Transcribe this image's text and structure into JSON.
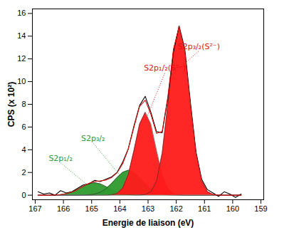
{
  "chart_data": {
    "type": "line",
    "x_label": "Energie de liaison (eV)",
    "y_label": "CPS (x 10²)",
    "xlim": [
      167.1,
      158.9
    ],
    "xticks": [
      167,
      166,
      165,
      164,
      163,
      162,
      161,
      160,
      159
    ],
    "ylim": [
      -0.4,
      16.4
    ],
    "yticks": [
      0,
      2,
      4,
      6,
      8,
      10,
      12,
      14,
      16
    ],
    "grid": false,
    "x": [
      166.9,
      166.7,
      166.5,
      166.3,
      166.1,
      165.9,
      165.7,
      165.5,
      165.3,
      165.1,
      164.9,
      164.7,
      164.5,
      164.3,
      164.1,
      163.9,
      163.7,
      163.5,
      163.3,
      163.1,
      162.9,
      162.7,
      162.5,
      162.3,
      162.1,
      161.9,
      161.7,
      161.5,
      161.3,
      161.1,
      160.9,
      160.7,
      160.5,
      160.3,
      160.1,
      159.9,
      159.7
    ],
    "series": [
      {
        "type": "area",
        "color": "#2e9a2e",
        "values": [
          0,
          0,
          0,
          0.02,
          0.05,
          0.13,
          0.27,
          0.5,
          0.78,
          1.01,
          1.1,
          1.01,
          0.78,
          0.5,
          0.27,
          0.13,
          0.05,
          0.02,
          0,
          0,
          0,
          0,
          0,
          0,
          0,
          0,
          0,
          0,
          0,
          0,
          0,
          0,
          0,
          0,
          0,
          0,
          0
        ]
      },
      {
        "type": "area",
        "color": "#2e9a2e",
        "values": [
          0,
          0,
          0,
          0,
          0,
          0,
          0,
          0,
          0.01,
          0.03,
          0.1,
          0.25,
          0.55,
          1.01,
          1.55,
          2.02,
          2.2,
          2.02,
          1.55,
          1.01,
          0.55,
          0.25,
          0.1,
          0.03,
          0.01,
          0,
          0,
          0,
          0,
          0,
          0,
          0,
          0,
          0,
          0,
          0,
          0
        ]
      },
      {
        "type": "area",
        "color": "#ff1a1a",
        "values": [
          0,
          0,
          0,
          0,
          0,
          0,
          0,
          0,
          0,
          0,
          0,
          0,
          0,
          0.03,
          0.15,
          0.62,
          1.82,
          3.94,
          6.26,
          7.3,
          6.26,
          3.94,
          1.82,
          0.62,
          0.15,
          0.03,
          0,
          0,
          0,
          0,
          0,
          0,
          0,
          0,
          0,
          0,
          0
        ]
      },
      {
        "type": "area",
        "color": "#ff1a1a",
        "values": [
          0,
          0,
          0,
          0,
          0,
          0,
          0,
          0,
          0,
          0,
          0,
          0,
          0,
          0,
          0,
          0,
          0,
          0,
          0.01,
          0.06,
          0.31,
          1.25,
          3.69,
          7.98,
          12.69,
          14.8,
          12.69,
          7.98,
          3.69,
          1.25,
          0.31,
          0.06,
          0.01,
          0,
          0,
          0,
          0
        ]
      },
      {
        "type": "line",
        "color": "#000000",
        "values": [
          0.3,
          0.1,
          0.2,
          0.0,
          0.4,
          0.2,
          0.3,
          0.6,
          0.9,
          1.0,
          1.3,
          1.2,
          1.4,
          1.6,
          2.0,
          2.9,
          4.1,
          6.1,
          7.9,
          8.7,
          7.3,
          5.6,
          5.5,
          8.5,
          12.6,
          14.9,
          12.9,
          8.2,
          3.8,
          1.4,
          0.5,
          0.2,
          -0.1,
          0.3,
          0.1,
          -0.2,
          0.1
        ]
      },
      {
        "type": "line",
        "color": "#e01010",
        "values": [
          0,
          0,
          0,
          0.02,
          0.05,
          0.13,
          0.27,
          0.5,
          0.79,
          1.04,
          1.2,
          1.26,
          1.33,
          1.54,
          1.97,
          2.77,
          4.07,
          5.98,
          7.82,
          8.37,
          7.12,
          5.44,
          5.61,
          8.63,
          12.85,
          14.83,
          12.69,
          7.98,
          3.69,
          1.25,
          0.31,
          0.06,
          0.01,
          0,
          0,
          0,
          0
        ]
      }
    ],
    "annotations": [
      {
        "text": "S2p₃/₂(S²⁻)",
        "color": "#e01010",
        "x": 161.2,
        "y": 12.7,
        "x_end": 162.2,
        "y_end": 10.5
      },
      {
        "text": "S2p₁/₂(S²⁻)",
        "color": "#e01010",
        "x": 162.4,
        "y": 10.8,
        "x_end": 163.1,
        "y_end": 6.5
      },
      {
        "text": "S2p₃/₂",
        "color": "#2e9a2e",
        "x": 164.95,
        "y": 4.6,
        "x_end": 163.95,
        "y_end": 1.6
      },
      {
        "text": "S2p₁/₂",
        "color": "#2e9a2e",
        "x": 166.1,
        "y": 2.85,
        "x_end": 165.2,
        "y_end": 1.0
      }
    ]
  }
}
